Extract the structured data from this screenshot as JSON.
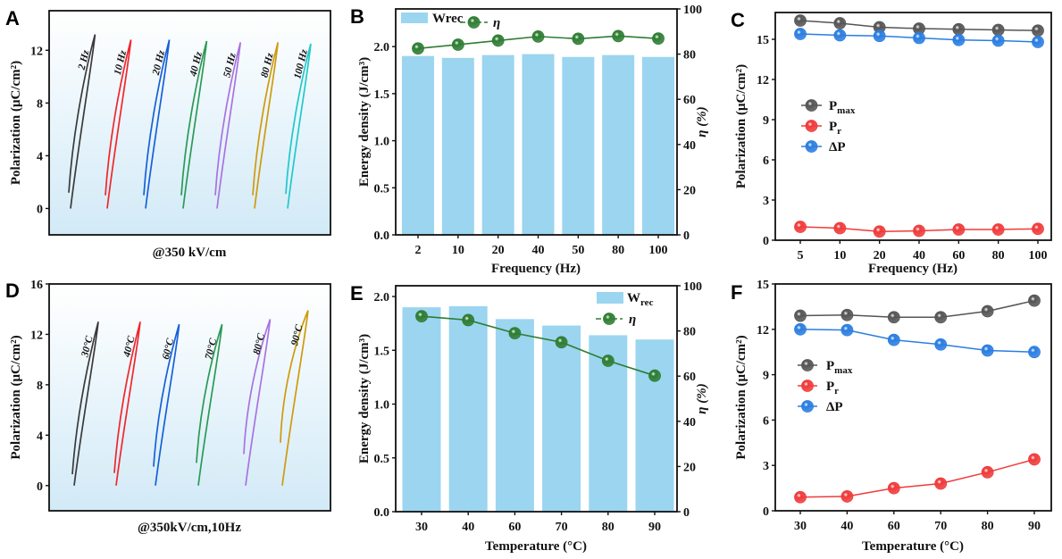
{
  "chart_data": [
    {
      "panel": "A",
      "type": "line",
      "subtitle": "@350 kV/cm",
      "ylabel": "Polarization (μC/cm²)",
      "ylim": [
        -2,
        15
      ],
      "yticks": [
        0,
        4,
        8,
        12
      ],
      "background": [
        "#ffffff",
        "#d2eaf7"
      ],
      "loops": [
        {
          "name": "2 Hz",
          "color": "#3a3a3a",
          "pmax": 13.2,
          "pr": 1.2
        },
        {
          "name": "10 Hz",
          "color": "#f0262c",
          "pmax": 12.8,
          "pr": 1.0
        },
        {
          "name": "20 Hz",
          "color": "#1560d8",
          "pmax": 12.8,
          "pr": 1.0
        },
        {
          "name": "40 Hz",
          "color": "#2a9a55",
          "pmax": 12.7,
          "pr": 1.0
        },
        {
          "name": "50 Hz",
          "color": "#a972e0",
          "pmax": 12.6,
          "pr": 1.0
        },
        {
          "name": "80 Hz",
          "color": "#cf9a0c",
          "pmax": 12.6,
          "pr": 1.0
        },
        {
          "name": "100 Hz",
          "color": "#1ec9cc",
          "pmax": 12.5,
          "pr": 1.1
        }
      ]
    },
    {
      "panel": "B",
      "type": "bar",
      "categories": [
        "2",
        "10",
        "20",
        "40",
        "50",
        "80",
        "100"
      ],
      "xlabel": "Frequency (Hz)",
      "ylabel": "Energy density (J/cm³)",
      "ylim": [
        0,
        2.4
      ],
      "yticks": [
        0.0,
        0.5,
        1.0,
        1.5,
        2.0
      ],
      "y2label": "η (%)",
      "y2lim": [
        0,
        100
      ],
      "y2ticks": [
        0,
        20,
        40,
        60,
        80,
        100
      ],
      "series": [
        {
          "name": "Wrec",
          "kind": "bar",
          "axis": "left",
          "color": "#9bd5f0",
          "values": [
            1.9,
            1.88,
            1.91,
            1.92,
            1.89,
            1.91,
            1.89
          ]
        },
        {
          "name": "η",
          "kind": "line",
          "axis": "right",
          "color": "#2e7d32",
          "values": [
            82.5,
            84.2,
            86.0,
            87.8,
            86.8,
            88.0,
            86.9
          ]
        }
      ],
      "legend": "top-left"
    },
    {
      "panel": "C",
      "type": "line",
      "categories": [
        "5",
        "10",
        "20",
        "40",
        "60",
        "80",
        "100"
      ],
      "xlabel": "Frequency (Hz)",
      "ylabel": "Polarization (μC/cm²)",
      "ylim": [
        0,
        17
      ],
      "yticks": [
        0,
        3,
        6,
        9,
        12,
        15
      ],
      "series": [
        {
          "name": "P",
          "name_sub": "max",
          "color": "#555555",
          "values": [
            16.4,
            16.2,
            15.9,
            15.8,
            15.75,
            15.7,
            15.65
          ]
        },
        {
          "name": "P",
          "name_sub": "r",
          "color": "#f03a3a",
          "values": [
            1.0,
            0.9,
            0.65,
            0.7,
            0.8,
            0.8,
            0.85
          ]
        },
        {
          "name": "ΔP",
          "name_sub": "",
          "color": "#2a7de1",
          "values": [
            15.4,
            15.3,
            15.25,
            15.1,
            14.95,
            14.9,
            14.8
          ]
        }
      ],
      "legend": "middle-left"
    },
    {
      "panel": "D",
      "type": "line",
      "subtitle": "@350kV/cm,10Hz",
      "ylabel": "Polarization (μC/cm²)",
      "ylim": [
        -2,
        16
      ],
      "yticks": [
        0,
        4,
        8,
        12,
        16
      ],
      "background": [
        "#ffffff",
        "#d2eaf7"
      ],
      "loops": [
        {
          "name": "30°C",
          "color": "#3a3a3a",
          "pmax": 13.0,
          "pr": 0.9
        },
        {
          "name": "40°C",
          "color": "#f0262c",
          "pmax": 13.0,
          "pr": 1.0
        },
        {
          "name": "60°C",
          "color": "#1560d8",
          "pmax": 12.8,
          "pr": 1.5
        },
        {
          "name": "70°C",
          "color": "#2a9a55",
          "pmax": 12.8,
          "pr": 1.8
        },
        {
          "name": "80°C",
          "color": "#a972e0",
          "pmax": 13.2,
          "pr": 2.5
        },
        {
          "name": "90°C",
          "color": "#cf9a0c",
          "pmax": 13.9,
          "pr": 3.4
        }
      ]
    },
    {
      "panel": "E",
      "type": "bar",
      "categories": [
        "30",
        "40",
        "60",
        "70",
        "80",
        "90"
      ],
      "xlabel": "Temperature  (°C)",
      "ylabel": "Energy density (J/cm³)",
      "ylim": [
        0,
        2.1
      ],
      "yticks": [
        0.0,
        0.5,
        1.0,
        1.5,
        2.0
      ],
      "y2label": "η (%)",
      "y2lim": [
        0,
        100
      ],
      "y2ticks": [
        0,
        20,
        40,
        60,
        80,
        100
      ],
      "series": [
        {
          "name": "W",
          "name_sub": "rec",
          "kind": "bar",
          "axis": "left",
          "color": "#9bd5f0",
          "values": [
            1.9,
            1.91,
            1.79,
            1.73,
            1.64,
            1.6
          ]
        },
        {
          "name": "η",
          "kind": "line",
          "axis": "right",
          "color": "#2e7d32",
          "values": [
            86.5,
            84.8,
            79.0,
            75.0,
            66.8,
            60.2
          ]
        }
      ],
      "legend": "top-right"
    },
    {
      "panel": "F",
      "type": "line",
      "categories": [
        "30",
        "40",
        "60",
        "70",
        "80",
        "90"
      ],
      "xlabel": "Temperature  (°C)",
      "ylabel": "Polarization (μC/cm²)",
      "ylim": [
        0,
        15
      ],
      "yticks": [
        0,
        3,
        6,
        9,
        12,
        15
      ],
      "series": [
        {
          "name": "P",
          "name_sub": "max",
          "color": "#555555",
          "values": [
            12.9,
            12.95,
            12.8,
            12.8,
            13.2,
            13.9
          ]
        },
        {
          "name": "P",
          "name_sub": "r",
          "color": "#f03a3a",
          "values": [
            0.9,
            0.95,
            1.5,
            1.8,
            2.55,
            3.4
          ]
        },
        {
          "name": "ΔP",
          "name_sub": "",
          "color": "#2a7de1",
          "values": [
            12.0,
            11.95,
            11.3,
            11.0,
            10.6,
            10.5
          ]
        }
      ],
      "legend": "middle-left"
    }
  ]
}
